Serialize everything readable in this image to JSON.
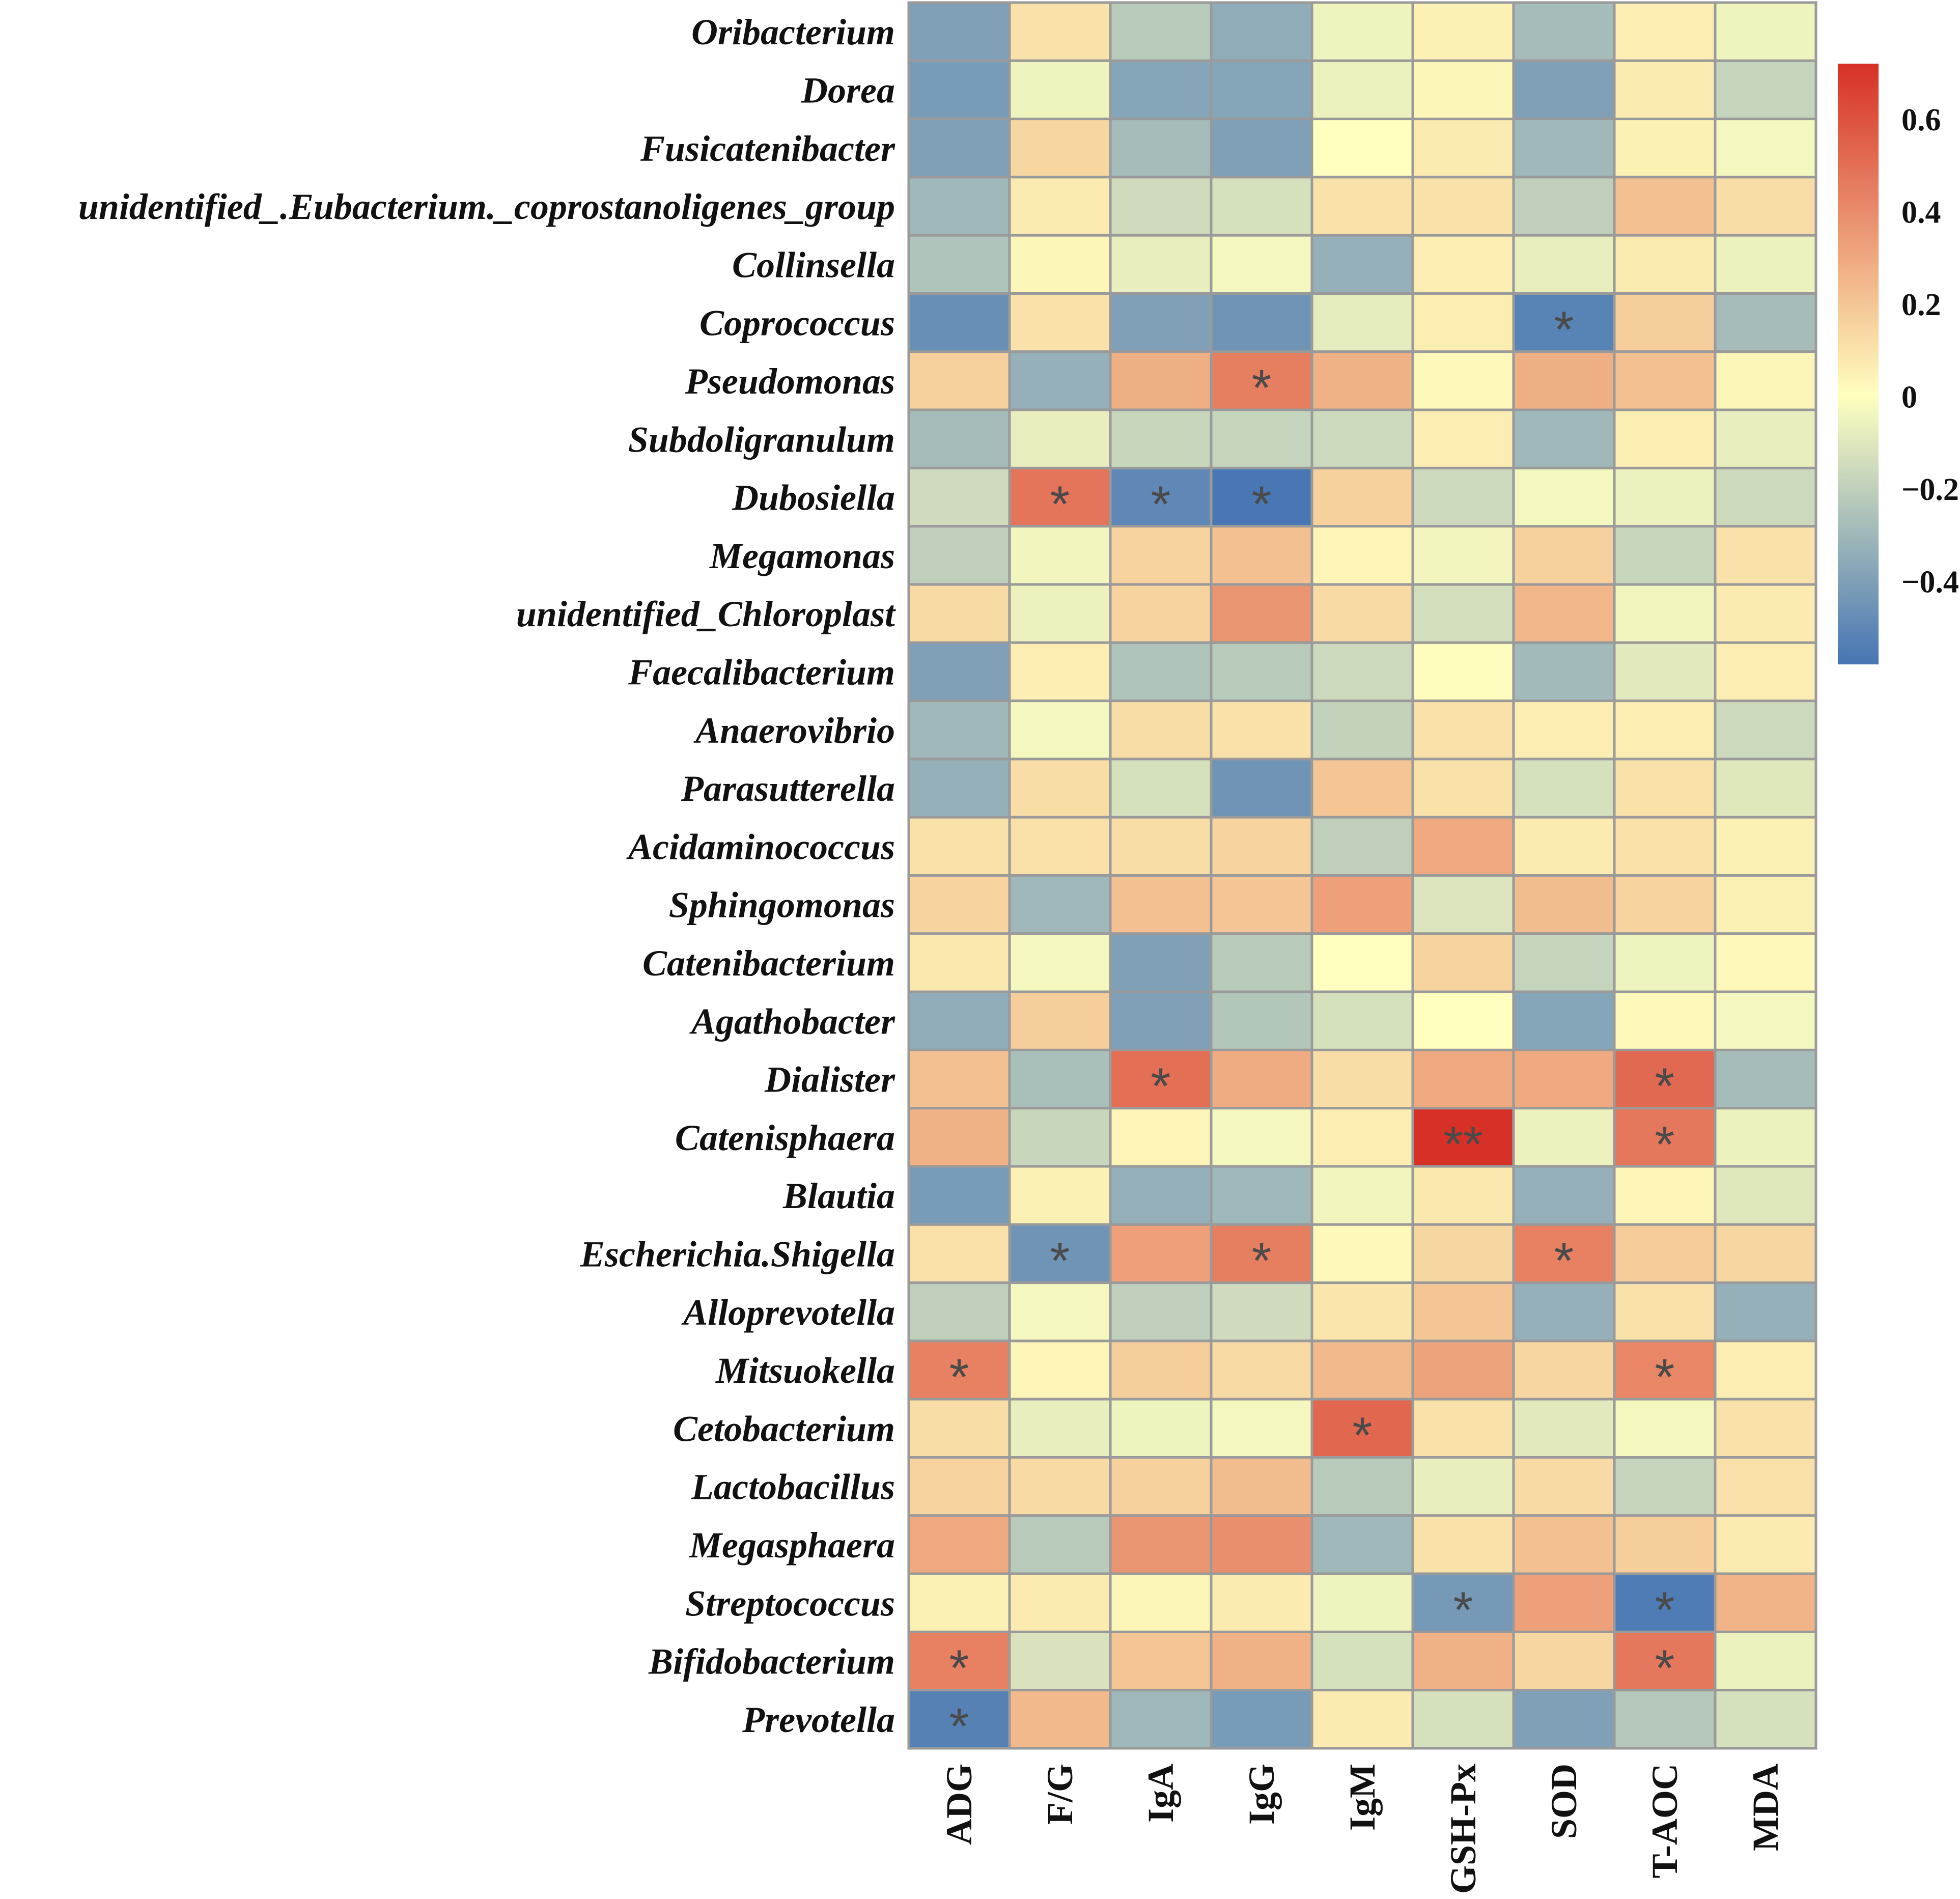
{
  "chart_data": {
    "type": "heatmap",
    "title": "",
    "rows": [
      "Oribacterium",
      "Dorea",
      "Fusicatenibacter",
      "unidentified_.Eubacterium._coprostanoligenes_group",
      "Collinsella",
      "Coprococcus",
      "Pseudomonas",
      "Subdoligranulum",
      "Dubosiella",
      "Megamonas",
      "unidentified_Chloroplast",
      "Faecalibacterium",
      "Anaerovibrio",
      "Parasutterella",
      "Acidaminococcus",
      "Sphingomonas",
      "Catenibacterium",
      "Agathobacter",
      "Dialister",
      "Catenisphaera",
      "Blautia",
      "Escherichia.Shigella",
      "Alloprevotella",
      "Mitsuokella",
      "Cetobacterium",
      "Lactobacillus",
      "Megasphaera",
      "Streptococcus",
      "Bifidobacterium",
      "Prevotella"
    ],
    "columns": [
      "ADG",
      "F/G",
      "IgA",
      "IgG",
      "IgM",
      "GSH-Px",
      "SOD",
      "T-AOC",
      "MDA"
    ],
    "values": [
      [
        -0.4,
        0.1,
        -0.22,
        -0.35,
        -0.05,
        0.05,
        -0.28,
        0.06,
        -0.05
      ],
      [
        -0.42,
        -0.05,
        -0.38,
        -0.38,
        -0.06,
        0.03,
        -0.4,
        0.07,
        -0.18
      ],
      [
        -0.4,
        0.14,
        -0.28,
        -0.4,
        0.0,
        0.07,
        -0.3,
        0.05,
        -0.03
      ],
      [
        -0.3,
        0.07,
        -0.15,
        -0.13,
        0.1,
        0.1,
        -0.2,
        0.22,
        0.12
      ],
      [
        -0.25,
        0.03,
        -0.07,
        -0.03,
        -0.33,
        0.06,
        -0.07,
        0.07,
        -0.06
      ],
      [
        -0.47,
        0.1,
        -0.4,
        -0.45,
        -0.08,
        0.06,
        -0.52,
        0.17,
        -0.28
      ],
      [
        0.16,
        -0.33,
        0.28,
        0.45,
        0.27,
        0.02,
        0.28,
        0.22,
        0.03
      ],
      [
        -0.28,
        -0.07,
        -0.17,
        -0.18,
        -0.16,
        0.06,
        -0.3,
        0.06,
        -0.07
      ],
      [
        -0.15,
        0.48,
        -0.5,
        -0.57,
        0.16,
        -0.16,
        -0.03,
        -0.06,
        -0.16
      ],
      [
        -0.2,
        -0.04,
        0.15,
        0.22,
        0.04,
        -0.04,
        0.16,
        -0.17,
        0.1
      ],
      [
        0.13,
        -0.06,
        0.15,
        0.37,
        0.13,
        -0.14,
        0.25,
        -0.04,
        0.07
      ],
      [
        -0.4,
        0.06,
        -0.25,
        -0.22,
        -0.16,
        0.01,
        -0.29,
        -0.09,
        0.06
      ],
      [
        -0.3,
        -0.03,
        0.12,
        0.1,
        -0.19,
        0.11,
        0.06,
        0.06,
        -0.16
      ],
      [
        -0.33,
        0.12,
        -0.13,
        -0.45,
        0.2,
        0.1,
        -0.13,
        0.1,
        -0.1
      ],
      [
        0.1,
        0.11,
        0.12,
        0.15,
        -0.2,
        0.3,
        0.07,
        0.11,
        0.05
      ],
      [
        0.15,
        -0.3,
        0.22,
        0.2,
        0.33,
        -0.11,
        0.23,
        0.15,
        0.05
      ],
      [
        0.08,
        -0.03,
        -0.4,
        -0.22,
        0.0,
        0.15,
        -0.18,
        -0.05,
        0.02
      ],
      [
        -0.35,
        0.17,
        -0.4,
        -0.24,
        -0.13,
        0.0,
        -0.38,
        0.02,
        -0.03
      ],
      [
        0.22,
        -0.27,
        0.5,
        0.29,
        0.12,
        0.3,
        0.3,
        0.52,
        -0.28
      ],
      [
        0.27,
        -0.17,
        0.04,
        -0.03,
        0.06,
        0.72,
        -0.06,
        0.47,
        -0.06
      ],
      [
        -0.42,
        0.05,
        -0.33,
        -0.3,
        -0.04,
        0.08,
        -0.33,
        0.04,
        -0.1
      ],
      [
        0.11,
        -0.45,
        0.33,
        0.45,
        0.02,
        0.14,
        0.44,
        0.18,
        0.14
      ],
      [
        -0.2,
        -0.03,
        -0.2,
        -0.15,
        0.09,
        0.2,
        -0.33,
        0.1,
        -0.33
      ],
      [
        0.44,
        0.04,
        0.17,
        0.13,
        0.24,
        0.32,
        0.14,
        0.42,
        0.06
      ],
      [
        0.12,
        -0.07,
        -0.05,
        -0.03,
        0.53,
        0.1,
        -0.09,
        -0.03,
        0.1
      ],
      [
        0.15,
        0.13,
        0.16,
        0.23,
        -0.22,
        -0.07,
        0.13,
        -0.18,
        0.11
      ],
      [
        0.3,
        -0.22,
        0.37,
        0.39,
        -0.3,
        0.1,
        0.22,
        0.17,
        0.07
      ],
      [
        0.05,
        0.07,
        0.03,
        0.07,
        -0.05,
        -0.43,
        0.33,
        -0.55,
        0.26
      ],
      [
        0.44,
        -0.12,
        0.2,
        0.27,
        -0.13,
        0.27,
        0.14,
        0.47,
        -0.06
      ],
      [
        -0.53,
        0.24,
        -0.3,
        -0.42,
        0.07,
        -0.13,
        -0.4,
        -0.23,
        -0.13
      ]
    ],
    "significance": [
      [
        "",
        "",
        "",
        "",
        "",
        "",
        "",
        "",
        ""
      ],
      [
        "",
        "",
        "",
        "",
        "",
        "",
        "",
        "",
        ""
      ],
      [
        "",
        "",
        "",
        "",
        "",
        "",
        "",
        "",
        ""
      ],
      [
        "",
        "",
        "",
        "",
        "",
        "",
        "",
        "",
        ""
      ],
      [
        "",
        "",
        "",
        "",
        "",
        "",
        "",
        "",
        ""
      ],
      [
        "",
        "",
        "",
        "",
        "",
        "",
        "*",
        "",
        ""
      ],
      [
        "",
        "",
        "",
        "*",
        "",
        "",
        "",
        "",
        ""
      ],
      [
        "",
        "",
        "",
        "",
        "",
        "",
        "",
        "",
        ""
      ],
      [
        "",
        "*",
        "*",
        "*",
        "",
        "",
        "",
        "",
        ""
      ],
      [
        "",
        "",
        "",
        "",
        "",
        "",
        "",
        "",
        ""
      ],
      [
        "",
        "",
        "",
        "",
        "",
        "",
        "",
        "",
        ""
      ],
      [
        "",
        "",
        "",
        "",
        "",
        "",
        "",
        "",
        ""
      ],
      [
        "",
        "",
        "",
        "",
        "",
        "",
        "",
        "",
        ""
      ],
      [
        "",
        "",
        "",
        "",
        "",
        "",
        "",
        "",
        ""
      ],
      [
        "",
        "",
        "",
        "",
        "",
        "",
        "",
        "",
        ""
      ],
      [
        "",
        "",
        "",
        "",
        "",
        "",
        "",
        "",
        ""
      ],
      [
        "",
        "",
        "",
        "",
        "",
        "",
        "",
        "",
        ""
      ],
      [
        "",
        "",
        "",
        "",
        "",
        "",
        "",
        "",
        ""
      ],
      [
        "",
        "",
        "*",
        "",
        "",
        "",
        "",
        "*",
        ""
      ],
      [
        "",
        "",
        "",
        "",
        "",
        "**",
        "",
        "*",
        ""
      ],
      [
        "",
        "",
        "",
        "",
        "",
        "",
        "",
        "",
        ""
      ],
      [
        "",
        "*",
        "",
        "*",
        "",
        "",
        "*",
        "",
        ""
      ],
      [
        "",
        "",
        "",
        "",
        "",
        "",
        "",
        "",
        ""
      ],
      [
        "*",
        "",
        "",
        "",
        "",
        "",
        "",
        "*",
        ""
      ],
      [
        "",
        "",
        "",
        "",
        "*",
        "",
        "",
        "",
        ""
      ],
      [
        "",
        "",
        "",
        "",
        "",
        "",
        "",
        "",
        ""
      ],
      [
        "",
        "",
        "",
        "",
        "",
        "",
        "",
        "",
        ""
      ],
      [
        "",
        "",
        "",
        "",
        "",
        "*",
        "",
        "*",
        ""
      ],
      [
        "*",
        "",
        "",
        "",
        "",
        "",
        "",
        "*",
        ""
      ],
      [
        "*",
        "",
        "",
        "",
        "",
        "",
        "",
        "",
        ""
      ]
    ],
    "colorbar": {
      "range": [
        -0.58,
        0.72
      ],
      "ticks": [
        0.6,
        0.4,
        0.2,
        0,
        -0.2,
        -0.4
      ],
      "tick_labels": [
        "0.6",
        "0.4",
        "0.2",
        "0",
        "−0.2",
        "−0.4"
      ],
      "colors": {
        "low": "#4575b4",
        "mid": "#ffffbf",
        "high": "#d73027"
      }
    },
    "colors": {
      "cell_border": "#9a9a9a",
      "star": "#4a4a4a",
      "text": "#111111"
    }
  }
}
